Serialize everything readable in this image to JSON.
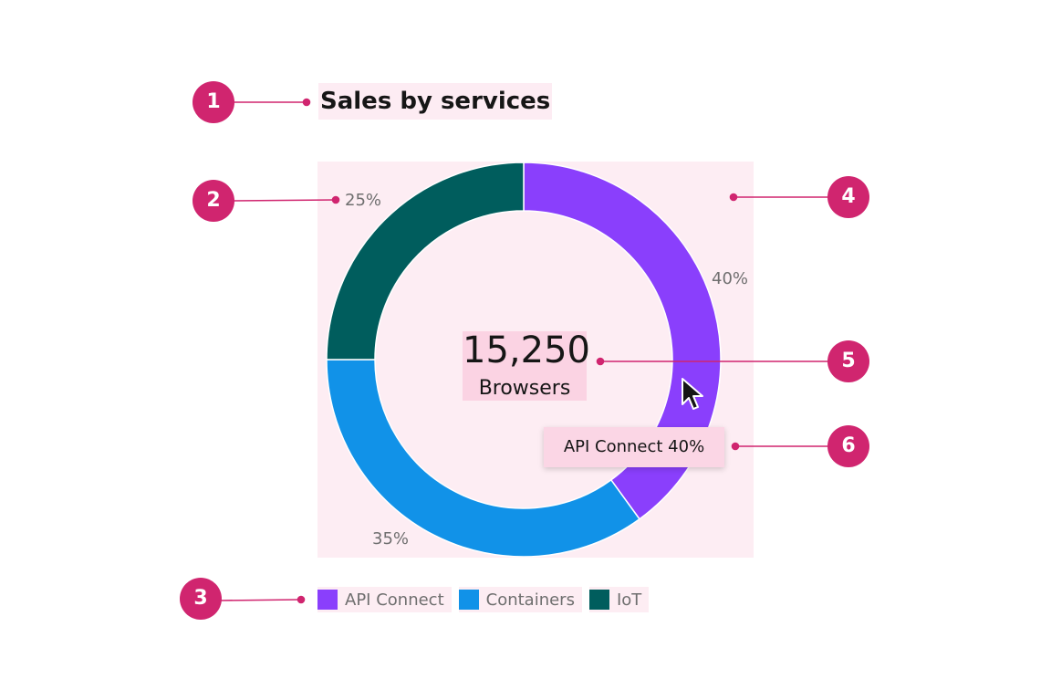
{
  "title": "Sales by services",
  "center": {
    "value": "15,250",
    "label": "Browsers"
  },
  "tooltip": {
    "text": "API Connect 40%"
  },
  "callouts": [
    "1",
    "2",
    "3",
    "4",
    "5",
    "6"
  ],
  "colors": {
    "callout": "#d0256f",
    "highlight": "#fdedf3"
  },
  "cursor_icon": "mouse-pointer-icon",
  "chart_data": {
    "type": "pie",
    "title": "Sales by services",
    "categories": [
      "API Connect",
      "Containers",
      "IoT"
    ],
    "values": [
      40,
      35,
      25
    ],
    "labels": [
      "40%",
      "35%",
      "25%"
    ],
    "colors": [
      "#8a3ffc",
      "#1192e8",
      "#005d5d"
    ],
    "legend": "bottom-left",
    "donut": true
  }
}
